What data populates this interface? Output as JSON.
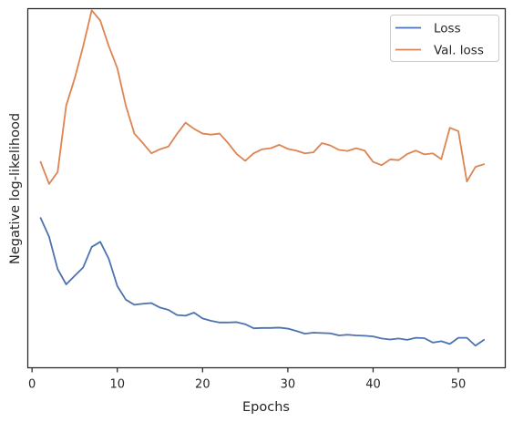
{
  "chart_data": {
    "type": "line",
    "xlabel": "Epochs",
    "ylabel": "Negative log-likelihood",
    "xlim": [
      -0.5,
      55.5
    ],
    "ylim": [
      -0.4,
      10.15
    ],
    "x_ticks": [
      0,
      10,
      20,
      30,
      40,
      50
    ],
    "y_ticks_labeled": false,
    "grid": false,
    "legend_position": "top-right",
    "x": [
      1,
      2,
      3,
      4,
      5,
      6,
      7,
      8,
      9,
      10,
      11,
      12,
      13,
      14,
      15,
      16,
      17,
      18,
      19,
      20,
      21,
      22,
      23,
      24,
      25,
      26,
      27,
      28,
      29,
      30,
      31,
      32,
      33,
      34,
      35,
      36,
      37,
      38,
      39,
      40,
      41,
      42,
      43,
      44,
      45,
      46,
      47,
      48,
      49,
      50,
      51,
      52,
      53
    ],
    "series": [
      {
        "name": "Loss",
        "color": "#4c72b0",
        "values": [
          4.0,
          3.45,
          2.5,
          2.05,
          2.3,
          2.55,
          3.15,
          3.3,
          2.8,
          2.0,
          1.6,
          1.45,
          1.48,
          1.5,
          1.37,
          1.3,
          1.15,
          1.13,
          1.22,
          1.05,
          0.98,
          0.93,
          0.93,
          0.94,
          0.88,
          0.76,
          0.77,
          0.77,
          0.78,
          0.75,
          0.68,
          0.6,
          0.63,
          0.62,
          0.61,
          0.55,
          0.57,
          0.55,
          0.54,
          0.52,
          0.46,
          0.43,
          0.46,
          0.42,
          0.48,
          0.47,
          0.34,
          0.38,
          0.3,
          0.48,
          0.48,
          0.25,
          0.42
        ]
      },
      {
        "name": "Val. loss",
        "color": "#dd8452",
        "values": [
          5.65,
          5.0,
          5.35,
          7.3,
          8.1,
          9.05,
          10.1,
          9.8,
          9.05,
          8.4,
          7.3,
          6.48,
          6.2,
          5.9,
          6.02,
          6.1,
          6.47,
          6.8,
          6.62,
          6.48,
          6.45,
          6.48,
          6.2,
          5.88,
          5.68,
          5.9,
          6.02,
          6.05,
          6.15,
          6.03,
          5.98,
          5.9,
          5.93,
          6.2,
          6.13,
          6.0,
          5.97,
          6.05,
          5.98,
          5.65,
          5.55,
          5.72,
          5.7,
          5.88,
          5.98,
          5.87,
          5.9,
          5.73,
          6.65,
          6.55,
          5.07,
          5.5,
          5.58
        ]
      }
    ]
  }
}
